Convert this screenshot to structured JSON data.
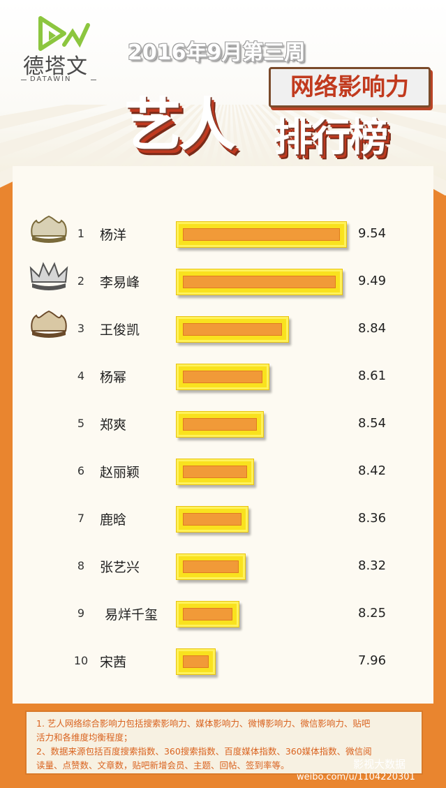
{
  "logo": {
    "name": "德塔文",
    "sub": "DATAWIN"
  },
  "header": {
    "week": "2016年9月第三周",
    "banner": "网络影响力",
    "title_big": "艺人",
    "title_small": "排行榜"
  },
  "chart_data": {
    "type": "bar",
    "orientation": "horizontal",
    "categories": [
      "杨洋",
      "李易峰",
      "王俊凯",
      "杨幂",
      "郑爽",
      "赵丽颖",
      "鹿晗",
      "张艺兴",
      "易烊千玺",
      "宋茜"
    ],
    "ranks": [
      "1",
      "2",
      "3",
      "4",
      "5",
      "6",
      "7",
      "8",
      "9",
      "10"
    ],
    "values": [
      9.54,
      9.49,
      8.84,
      8.61,
      8.54,
      8.42,
      8.36,
      8.32,
      8.25,
      7.96
    ],
    "value_labels": [
      "9.54",
      "9.49",
      "8.84",
      "8.61",
      "8.54",
      "8.42",
      "8.36",
      "8.32",
      "8.25",
      "7.96"
    ],
    "xlim": [
      7.5,
      9.6
    ],
    "colors": {
      "bar_outer": "#f9e21e",
      "bar_inner": "#f19a38"
    },
    "crowns": [
      "gold-crown-icon",
      "silver-crown-icon",
      "bronze-crown-icon"
    ]
  },
  "notes": [
    "1. 艺人网络综合影响力包括搜索影响力、媒体影响力、微博影响力、微信影响力、贴吧",
    "活力和各维度均衡程度；",
    "2、数据来源包括百度搜索指数、360搜索指数、百度媒体指数、360媒体指数、微信阅",
    "读量、点赞数、文章数，贴吧新增会员、主题、回帖、签到率等。"
  ],
  "watermark": {
    "weibo": "weibo.com/u/1104220301",
    "account": "影视大数据"
  }
}
